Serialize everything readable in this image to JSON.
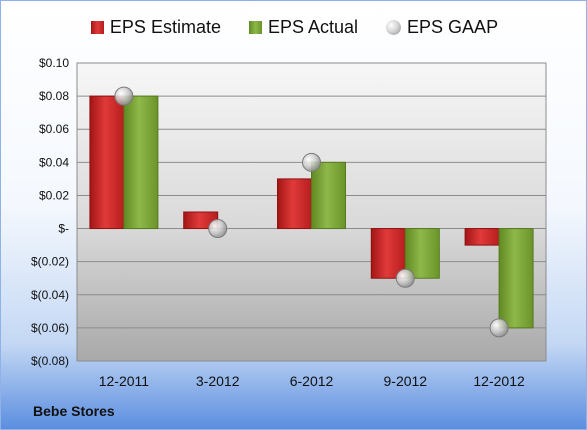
{
  "company": "Bebe Stores",
  "colors": {
    "estimate": "#d42a2a",
    "actual": "#7ea63b",
    "gaap": "#b9b9b9"
  },
  "chart_data": {
    "type": "bar",
    "categories": [
      "12-2011",
      "3-2012",
      "6-2012",
      "9-2012",
      "12-2012"
    ],
    "series": [
      {
        "name": "EPS Estimate",
        "values": [
          0.08,
          0.01,
          0.03,
          -0.03,
          -0.01
        ]
      },
      {
        "name": "EPS Actual",
        "values": [
          0.08,
          0.0,
          0.04,
          -0.03,
          -0.06
        ]
      },
      {
        "name": "EPS GAAP",
        "type": "marker",
        "values": [
          0.08,
          0.0,
          0.04,
          -0.03,
          -0.06
        ]
      }
    ],
    "ylim": [
      -0.08,
      0.1
    ],
    "yticks": [
      0.1,
      0.08,
      0.06,
      0.04,
      0.02,
      0,
      -0.02,
      -0.04,
      -0.06,
      -0.08
    ],
    "ytick_labels": [
      "$0.10",
      "$0.08",
      "$0.06",
      "$0.04",
      "$0.02",
      "$-",
      "$(0.02)",
      "$(0.04)",
      "$(0.06)",
      "$(0.08)"
    ],
    "legend_position": "top-center",
    "grid": true
  }
}
